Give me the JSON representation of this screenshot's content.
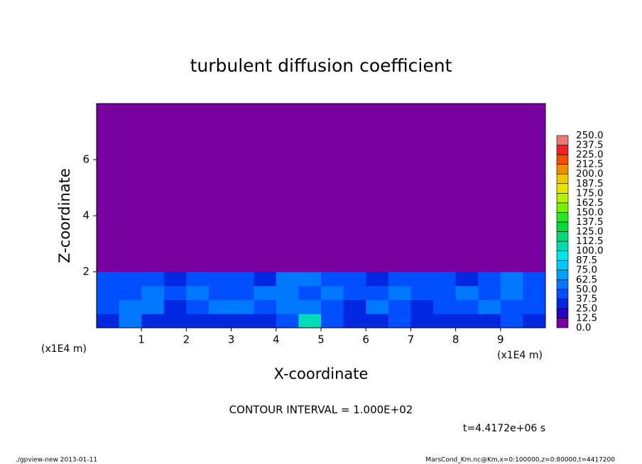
{
  "chart_data": {
    "type": "heatmap",
    "title": "turbulent diffusion coefficient",
    "x_label": "X-coordinate",
    "y_label": "Z-coordinate",
    "x_unit": "(x1E4 m)",
    "x_unit_right": "(x1E4 m)",
    "xlim": [
      0,
      10
    ],
    "ylim": [
      0,
      8
    ],
    "xticks": [
      1,
      2,
      3,
      4,
      5,
      6,
      7,
      8,
      9
    ],
    "yticks": [
      2,
      4,
      6
    ],
    "xbins": [
      0,
      0.5,
      1,
      1.5,
      2,
      2.5,
      3,
      3.5,
      4,
      4.5,
      5,
      5.5,
      6,
      6.5,
      7,
      7.5,
      8,
      8.5,
      9,
      9.5,
      10
    ],
    "ybins": [
      0,
      0.5,
      1,
      1.5,
      2,
      8
    ],
    "values": [
      [
        35,
        50,
        30,
        30,
        35,
        30,
        30,
        35,
        45,
        100,
        40,
        30,
        30,
        45,
        35,
        30,
        30,
        35,
        40,
        35
      ],
      [
        40,
        60,
        55,
        35,
        40,
        55,
        60,
        40,
        50,
        55,
        45,
        35,
        50,
        40,
        35,
        40,
        45,
        50,
        45,
        40
      ],
      [
        45,
        40,
        50,
        45,
        55,
        40,
        45,
        50,
        60,
        45,
        55,
        40,
        45,
        50,
        40,
        45,
        55,
        45,
        60,
        45
      ],
      [
        40,
        45,
        40,
        35,
        40,
        45,
        40,
        35,
        50,
        55,
        45,
        40,
        35,
        40,
        45,
        40,
        35,
        45,
        50,
        40
      ],
      [
        0,
        0,
        0,
        0,
        0,
        0,
        0,
        0,
        0,
        0,
        0,
        0,
        0,
        0,
        0,
        0,
        0,
        0,
        0,
        0
      ]
    ],
    "colorbar_lim": [
      0,
      250
    ],
    "levels": [
      {
        "value": 0,
        "label": "0.0"
      },
      {
        "value": 12.5,
        "label": "12.5"
      },
      {
        "value": 25,
        "label": "25.0"
      },
      {
        "value": 37.5,
        "label": "37.5"
      },
      {
        "value": 50,
        "label": "50.0"
      },
      {
        "value": 62.5,
        "label": "62.5"
      },
      {
        "value": 75,
        "label": "75.0"
      },
      {
        "value": 87.5,
        "label": "87.5"
      },
      {
        "value": 100,
        "label": "100.0"
      },
      {
        "value": 112.5,
        "label": "112.5"
      },
      {
        "value": 125,
        "label": "125.0"
      },
      {
        "value": 137.5,
        "label": "137.5"
      },
      {
        "value": 150,
        "label": "150.0"
      },
      {
        "value": 162.5,
        "label": "162.5"
      },
      {
        "value": 175,
        "label": "175.0"
      },
      {
        "value": 187.5,
        "label": "187.5"
      },
      {
        "value": 200,
        "label": "200.0"
      },
      {
        "value": 212.5,
        "label": "212.5"
      },
      {
        "value": 225,
        "label": "225.0"
      },
      {
        "value": 237.5,
        "label": "237.5"
      },
      {
        "value": 250,
        "label": "250.0"
      }
    ],
    "colors": [
      "#7800a0",
      "#2800c8",
      "#0028e0",
      "#0050ff",
      "#0078ff",
      "#00a0ff",
      "#00c8ff",
      "#00e6e6",
      "#00dcb4",
      "#00dc78",
      "#00dc3c",
      "#28e628",
      "#78f000",
      "#b4f000",
      "#e6e600",
      "#f0c800",
      "#f08c00",
      "#f05000",
      "#f02020",
      "#f07878"
    ],
    "contour_interval": "CONTOUR INTERVAL = 1.000E+02",
    "time": "t=4.4172e+06 s",
    "footer_left": "./gpview-new  2013-01-11",
    "footer_right": "MarsCond_Km.nc@Km,x=0:100000,z=0:80000,t=4417200"
  }
}
